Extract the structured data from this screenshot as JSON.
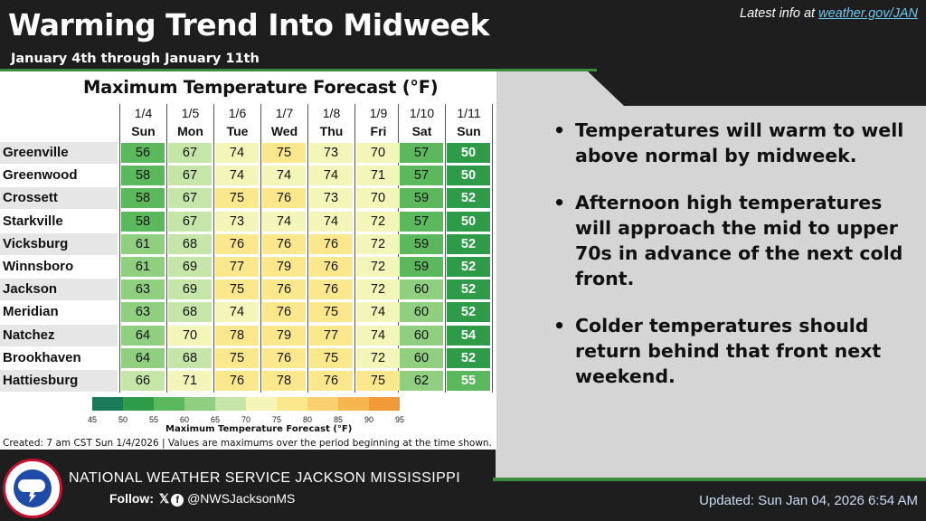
{
  "header": {
    "title": "Warming Trend Into Midweek",
    "subtitle": "January 4th through January 11th",
    "latest_prefix": "Latest info at ",
    "latest_link": "weather.gov/JAN"
  },
  "table": {
    "title": "Maximum Temperature Forecast (°F)",
    "dates": [
      "1/4",
      "1/5",
      "1/6",
      "1/7",
      "1/8",
      "1/9",
      "1/10",
      "1/11"
    ],
    "days": [
      "Sun",
      "Mon",
      "Tue",
      "Wed",
      "Thu",
      "Fri",
      "Sat",
      "Sun"
    ],
    "rows": [
      {
        "city": "Greenville",
        "temps": [
          56,
          67,
          74,
          75,
          73,
          70,
          57,
          50
        ]
      },
      {
        "city": "Greenwood",
        "temps": [
          58,
          67,
          74,
          74,
          74,
          71,
          57,
          50
        ]
      },
      {
        "city": "Crossett",
        "temps": [
          58,
          67,
          75,
          76,
          73,
          70,
          59,
          52
        ]
      },
      {
        "city": "Starkville",
        "temps": [
          58,
          67,
          73,
          74,
          74,
          72,
          57,
          50
        ]
      },
      {
        "city": "Vicksburg",
        "temps": [
          61,
          68,
          76,
          76,
          76,
          72,
          59,
          52
        ]
      },
      {
        "city": "Winnsboro",
        "temps": [
          61,
          69,
          77,
          79,
          76,
          72,
          59,
          52
        ]
      },
      {
        "city": "Jackson",
        "temps": [
          63,
          69,
          75,
          76,
          76,
          72,
          60,
          52
        ]
      },
      {
        "city": "Meridian",
        "temps": [
          63,
          68,
          74,
          76,
          75,
          74,
          60,
          52
        ]
      },
      {
        "city": "Natchez",
        "temps": [
          64,
          70,
          78,
          79,
          77,
          74,
          60,
          54
        ]
      },
      {
        "city": "Brookhaven",
        "temps": [
          64,
          68,
          75,
          76,
          75,
          72,
          60,
          52
        ]
      },
      {
        "city": "Hattiesburg",
        "temps": [
          66,
          71,
          76,
          78,
          76,
          75,
          62,
          55
        ]
      }
    ],
    "colorbar": {
      "ticks": [
        45,
        50,
        55,
        60,
        65,
        70,
        75,
        80,
        85,
        90,
        95
      ],
      "colors": [
        "#1b7a5a",
        "#2e9b48",
        "#5cb85c",
        "#8fcf7f",
        "#c5e6a8",
        "#f3f6b8",
        "#fbe88c",
        "#f8d070",
        "#f5b650",
        "#f09a38"
      ],
      "label": "Maximum Temperature Forecast (°F)"
    },
    "created_note": "Created: 7 am CST Sun 1/4/2026  |  Values are maximums over the period beginning at the time shown."
  },
  "bullets": [
    "Temperatures will warm to well above normal by midweek.",
    "Afternoon high temperatures will approach the mid to upper 70s in advance of the next cold front.",
    "Colder temperatures should return behind that front next weekend."
  ],
  "footer": {
    "office": "NATIONAL WEATHER SERVICE JACKSON MISSISSIPPI",
    "follow_label": "Follow:",
    "x_icon": "x-logo-icon",
    "facebook_icon": "facebook-icon",
    "handle": "@NWSJacksonMS",
    "updated": "Updated: Sun Jan 04, 2026 6:54 AM"
  },
  "colors": {
    "accent_green": "#3d8c3d",
    "background_dark": "#1e1e1e",
    "panel_gray": "#d5d5d5",
    "link_blue": "#6cc7ef"
  }
}
